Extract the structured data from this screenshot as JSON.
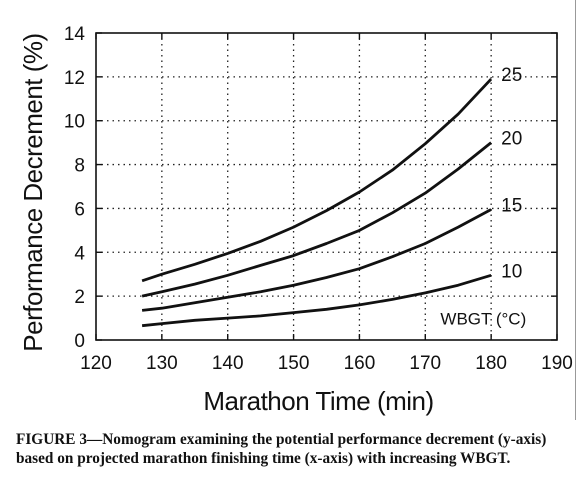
{
  "chart_data": {
    "type": "line",
    "xlabel": "Marathon Time (min)",
    "ylabel": "Performance Decrement (%)",
    "xlim": [
      120,
      190
    ],
    "ylim": [
      0,
      14
    ],
    "xticks": [
      120,
      130,
      140,
      150,
      160,
      170,
      180,
      190
    ],
    "yticks": [
      0,
      2,
      4,
      6,
      8,
      10,
      12,
      14
    ],
    "grid": true,
    "legend_title": "WBGT (°C)",
    "series": [
      {
        "name": "10",
        "x": [
          127,
          130,
          135,
          140,
          145,
          150,
          155,
          160,
          165,
          170,
          175,
          180
        ],
        "y": [
          0.65,
          0.75,
          0.9,
          1.0,
          1.1,
          1.25,
          1.4,
          1.6,
          1.85,
          2.15,
          2.5,
          2.95
        ]
      },
      {
        "name": "15",
        "x": [
          127,
          130,
          135,
          140,
          145,
          150,
          155,
          160,
          165,
          170,
          175,
          180
        ],
        "y": [
          1.35,
          1.45,
          1.7,
          1.95,
          2.2,
          2.5,
          2.85,
          3.25,
          3.8,
          4.4,
          5.15,
          5.95
        ]
      },
      {
        "name": "20",
        "x": [
          127,
          130,
          135,
          140,
          145,
          150,
          155,
          160,
          165,
          170,
          175,
          180
        ],
        "y": [
          2.0,
          2.2,
          2.55,
          2.95,
          3.4,
          3.85,
          4.4,
          5.0,
          5.8,
          6.7,
          7.8,
          9.0
        ]
      },
      {
        "name": "25",
        "x": [
          127,
          130,
          135,
          140,
          145,
          150,
          155,
          160,
          165,
          170,
          175,
          180
        ],
        "y": [
          2.7,
          3.0,
          3.45,
          3.95,
          4.5,
          5.15,
          5.9,
          6.75,
          7.75,
          8.95,
          10.3,
          11.9
        ]
      }
    ]
  },
  "caption": "FIGURE 3—Nomogram examining the potential performance decrement (y-axis) based on projected marathon finishing time (x-axis) with increasing WBGT."
}
